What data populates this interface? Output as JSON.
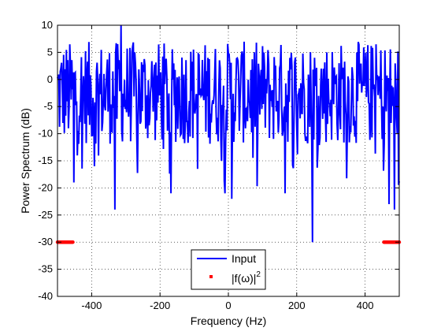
{
  "chart_data": {
    "type": "line",
    "xlabel": "Frequency (Hz)",
    "ylabel": "Power Spectrum (dB)",
    "xlim": [
      -500,
      500
    ],
    "ylim": [
      -40,
      10
    ],
    "xticks": [
      -400,
      -200,
      0,
      200,
      400
    ],
    "xtick_labels": [
      "-400",
      "-200",
      "0",
      "200",
      "400"
    ],
    "yticks": [
      10,
      5,
      0,
      -5,
      -10,
      -15,
      -20,
      -25,
      -30,
      -35,
      -40
    ],
    "ytick_labels": [
      "10",
      "5",
      "0",
      "-5",
      "-10",
      "-15",
      "-20",
      "-25",
      "-30",
      "-35",
      "-40"
    ],
    "grid": true,
    "legend_position": "bottom-center",
    "series": [
      {
        "name": "Input",
        "style": "line",
        "color": "#0000ff",
        "noise_band_db": [
          -12,
          7
        ],
        "description_points": [
          {
            "x": -315,
            "y": 10
          },
          {
            "x": -332,
            "y": -24
          },
          {
            "x": -452,
            "y": -19
          },
          {
            "x": -392,
            "y": -16
          },
          {
            "x": -168,
            "y": -21
          },
          {
            "x": -10,
            "y": -21
          },
          {
            "x": 10,
            "y": -22
          },
          {
            "x": 165,
            "y": -21
          },
          {
            "x": 245,
            "y": -30
          },
          {
            "x": 470,
            "y": -23
          },
          {
            "x": 485,
            "y": -24
          }
        ]
      },
      {
        "name": "|f(ω)|²",
        "legend_label": "|f(ω)|",
        "legend_superscript": "2",
        "style": "markers",
        "color": "#ff0000",
        "segments": [
          {
            "x_start": -500,
            "x_end": -455,
            "y": -30
          },
          {
            "x_start": 455,
            "x_end": 500,
            "y": -30
          }
        ]
      }
    ]
  }
}
